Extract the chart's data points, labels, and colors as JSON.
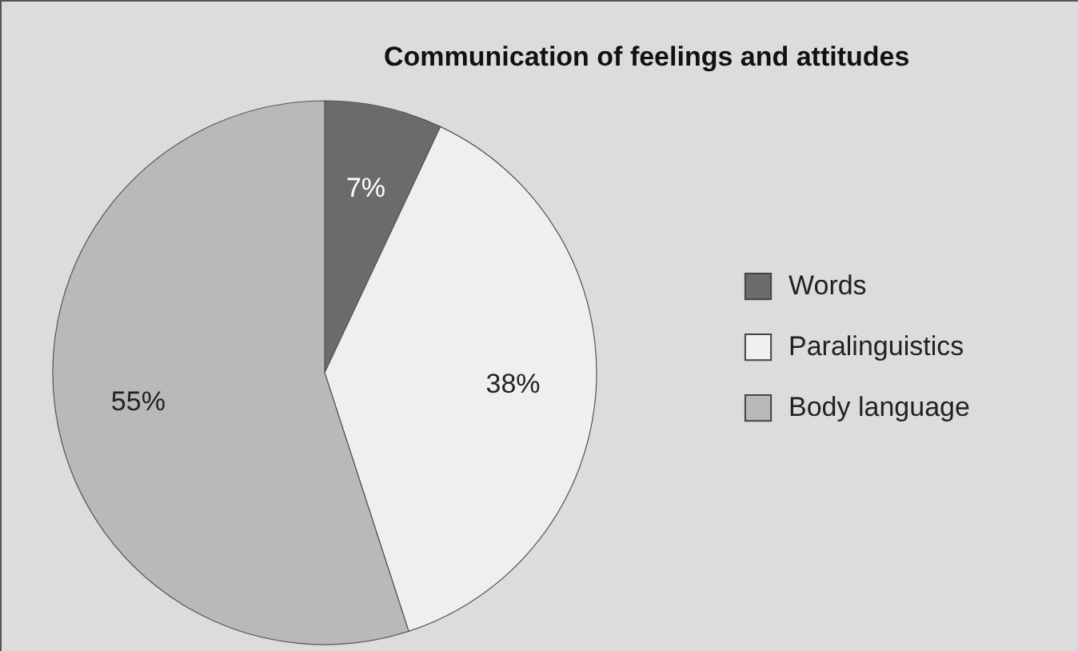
{
  "chart_data": {
    "type": "pie",
    "title": "Communication of feelings and attitudes",
    "categories": [
      "Words",
      "Paralinguistics",
      "Body language"
    ],
    "values": [
      7,
      38,
      55
    ],
    "colors": [
      "#6b6b6b",
      "#efefef",
      "#b9b9b9"
    ],
    "value_labels": [
      "7%",
      "38%",
      "55%"
    ],
    "legend": "right"
  }
}
